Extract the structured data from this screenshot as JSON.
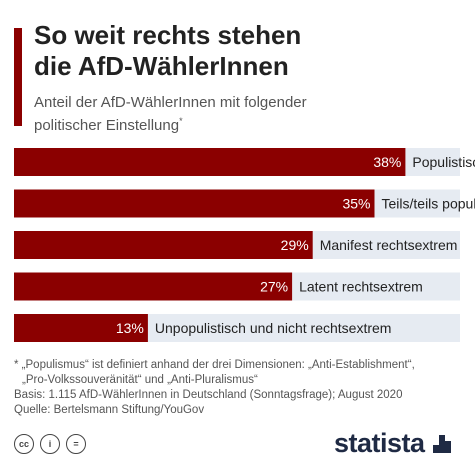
{
  "header": {
    "title_line1": "So weit rechts stehen",
    "title_line2": "die AfD-WählerInnen",
    "subtitle_line1": "Anteil der AfD-WählerInnen mit folgender",
    "subtitle_line2": "politischer Einstellung",
    "subtitle_mark": "*"
  },
  "colors": {
    "bar": "#8b0000",
    "track": "#e6ebf2",
    "accent": "#8b0000"
  },
  "chart_data": {
    "type": "bar",
    "orientation": "horizontal",
    "categories": [
      "Populistisch",
      "Teils/teils populistisch",
      "Manifest rechtsextrem",
      "Latent rechtsextrem",
      "Unpopulistisch und nicht rechtsextrem"
    ],
    "values": [
      38,
      35,
      29,
      27,
      13
    ],
    "value_labels": [
      "38%",
      "35%",
      "29%",
      "27%",
      "13%"
    ],
    "xlim": [
      0,
      100
    ],
    "grid": false,
    "legend": "none"
  },
  "footnote": {
    "line1": "* „Populismus“ ist definiert anhand der drei Dimensionen: „Anti-Establishment“,",
    "line2": "„Pro-Volkssouveränität“ und „Anti-Pluralismus“",
    "line3": "Basis: 1.115 AfD-WählerInnen in Deutschland (Sonntagsfrage); August 2020",
    "line4": "Quelle: Bertelsmann Stiftung/YouGov"
  },
  "license_icons": {
    "cc": "cc",
    "by": "i",
    "equal": "="
  },
  "brand": {
    "name": "statista"
  }
}
